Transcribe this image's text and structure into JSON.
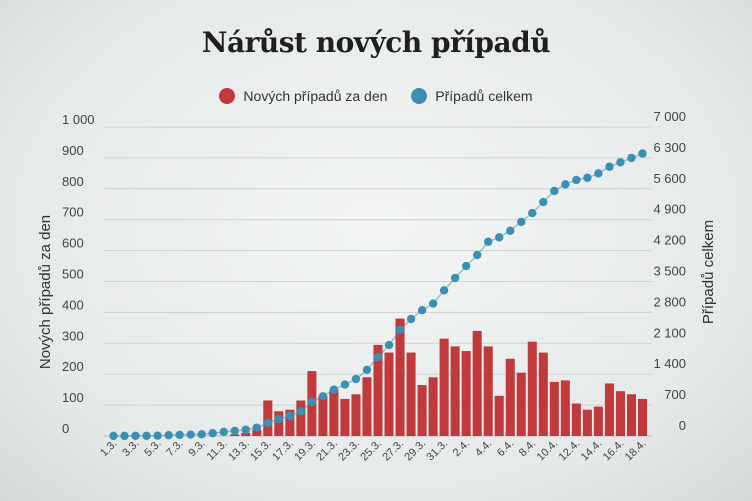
{
  "chart_data": {
    "type": "bar+line",
    "title": "Nárůst nových případů",
    "legend_placement": "top",
    "x": [
      "1.3.",
      "2.3.",
      "3.3.",
      "4.3.",
      "5.3.",
      "6.3.",
      "7.3.",
      "8.3.",
      "9.3.",
      "10.3.",
      "11.3.",
      "12.3.",
      "13.3.",
      "14.3.",
      "15.3.",
      "16.3.",
      "17.3.",
      "18.3.",
      "19.3.",
      "20.3.",
      "21.3.",
      "22.3.",
      "23.3.",
      "24.3.",
      "25.3.",
      "26.3.",
      "27.3.",
      "28.3.",
      "29.3.",
      "30.3.",
      "31.3.",
      "1.4.",
      "2.4.",
      "3.4.",
      "4.4.",
      "5.4.",
      "6.4.",
      "7.4.",
      "8.4.",
      "9.4.",
      "10.4.",
      "11.4.",
      "12.4.",
      "13.4.",
      "14.4.",
      "15.4.",
      "16.4.",
      "17.4.",
      "18.4."
    ],
    "x_tick_labels": [
      "1.3.",
      "3.3.",
      "5.3.",
      "7.3.",
      "9.3.",
      "11.3.",
      "13.3.",
      "15.3.",
      "17.3.",
      "19.3.",
      "21.3.",
      "23.3.",
      "25.3.",
      "27.3.",
      "29.3.",
      "31.3.",
      "2.4.",
      "4.4.",
      "6.4.",
      "8.4.",
      "10.4.",
      "12.4.",
      "14.4.",
      "16.4.",
      "18.4."
    ],
    "series": [
      {
        "name": "Nových případů za den",
        "axis": "left",
        "kind": "bar",
        "color": "#c0393b",
        "values": [
          0,
          0,
          0,
          0,
          0,
          0,
          0,
          0,
          0,
          0,
          0,
          5,
          10,
          20,
          115,
          80,
          85,
          115,
          210,
          130,
          150,
          120,
          135,
          190,
          295,
          270,
          380,
          270,
          165,
          190,
          315,
          290,
          275,
          340,
          290,
          130,
          250,
          205,
          305,
          270,
          175,
          180,
          105,
          85,
          95,
          170,
          145,
          135,
          120
        ]
      },
      {
        "name": "Případů celkem",
        "axis": "right",
        "kind": "line-dots",
        "color": "#3b8fb4",
        "values": [
          3,
          3,
          5,
          5,
          8,
          19,
          26,
          32,
          38,
          63,
          94,
          116,
          141,
          189,
          298,
          383,
          450,
          560,
          770,
          900,
          1050,
          1165,
          1290,
          1500,
          1790,
          2060,
          2400,
          2650,
          2850,
          3000,
          3300,
          3580,
          3850,
          4100,
          4400,
          4500,
          4650,
          4850,
          5050,
          5300,
          5550,
          5700,
          5800,
          5850,
          5950,
          6100,
          6200,
          6300,
          6400
        ]
      }
    ],
    "y_left": {
      "label": "Nových případů za den",
      "min": 0,
      "max": 1000,
      "ticks": [
        "0",
        "100",
        "200",
        "300",
        "400",
        "500",
        "600",
        "700",
        "800",
        "900",
        "1 000"
      ]
    },
    "y_right": {
      "label": "Případů celkem",
      "min": 0,
      "max": 7000,
      "ticks": [
        "0",
        "700",
        "1 400",
        "2 100",
        "2 800",
        "3 500",
        "4 200",
        "4 900",
        "5 600",
        "6 300",
        "7 000"
      ]
    },
    "grid": true
  }
}
